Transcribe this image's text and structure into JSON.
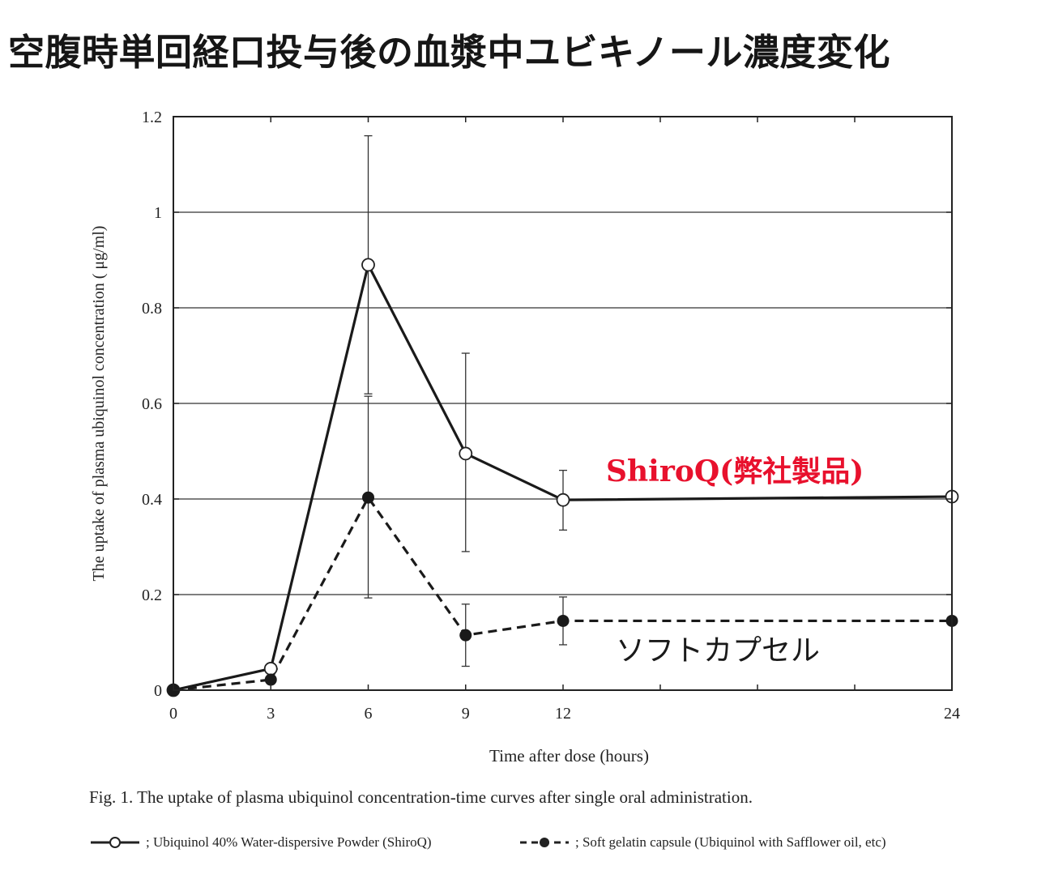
{
  "page": {
    "title": "空腹時単回経口投与後の血漿中ユビキノール濃度変化"
  },
  "chart_data": {
    "type": "line",
    "xlabel": "Time after dose (hours)",
    "ylabel": "The uptake of plasma ubiquinol concentration ( μg/ml)",
    "x": [
      0,
      3,
      6,
      9,
      12,
      24
    ],
    "x_ticks": [
      "0",
      "3",
      "6",
      "9",
      "12",
      "24"
    ],
    "y_ticks": [
      "0",
      "0.2",
      "0.4",
      "0.6",
      "0.8",
      "1",
      "1.2"
    ],
    "ylim": [
      0,
      1.2
    ],
    "grid": "horizontal",
    "series": [
      {
        "name": "; Ubiquinol 40% Water-dispersive Powder (ShiroQ)",
        "annotation": "ShiroQ(弊社製品)",
        "annotation_color": "#e8112d",
        "line_style": "solid",
        "marker": "open-circle",
        "values": [
          0.0,
          0.045,
          0.89,
          0.495,
          0.398,
          0.405
        ],
        "error_low": [
          null,
          null,
          0.62,
          0.29,
          0.335,
          null
        ],
        "error_high": [
          null,
          null,
          1.16,
          0.705,
          0.46,
          null
        ]
      },
      {
        "name": "; Soft gelatin capsule (Ubiquinol with Safflower oil, etc)",
        "annotation": "ソフトカプセル",
        "annotation_color": "#1a1a1a",
        "line_style": "dashed",
        "marker": "filled-circle",
        "values": [
          0.0,
          0.022,
          0.403,
          0.115,
          0.145,
          0.145
        ],
        "error_low": [
          null,
          null,
          0.193,
          0.05,
          0.095,
          null
        ],
        "error_high": [
          null,
          null,
          0.615,
          0.18,
          0.195,
          null
        ]
      }
    ]
  },
  "caption": "Fig. 1.  The uptake of plasma ubiquinol concentration-time curves after single oral administration."
}
